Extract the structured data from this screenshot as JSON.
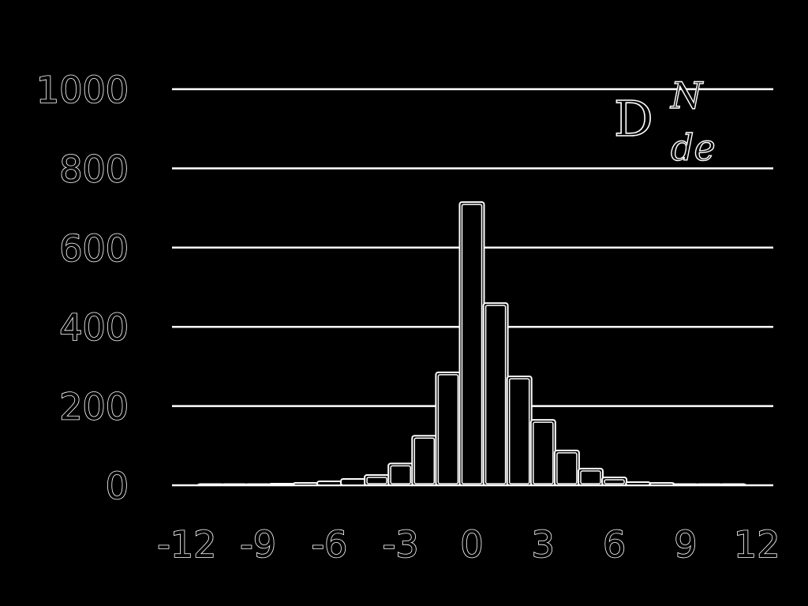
{
  "chart_data": {
    "type": "bar",
    "title": "",
    "xlabel": "",
    "ylabel": "",
    "xlim": [
      -12,
      12
    ],
    "ylim": [
      0,
      1000
    ],
    "x_ticks": [
      "-12",
      "-9",
      "-6",
      "-3",
      "0",
      "3",
      "6",
      "9",
      "12"
    ],
    "y_ticks": [
      "0",
      "200",
      "400",
      "600",
      "800",
      "1000"
    ],
    "grid": true,
    "legend_placement": "top-right",
    "series": [
      {
        "legend_main": "D",
        "legend_sup": "N",
        "legend_sub": "de",
        "x": [
          -11,
          -10,
          -9,
          -8,
          -7,
          -6,
          -5,
          -4,
          -3,
          -2,
          -1,
          0,
          1,
          2,
          3,
          4,
          5,
          6,
          7,
          8,
          9,
          10,
          11
        ],
        "values": [
          0,
          0,
          2,
          4,
          6,
          10,
          16,
          26,
          55,
          125,
          285,
          715,
          460,
          275,
          165,
          88,
          42,
          20,
          8,
          6,
          3,
          1,
          0
        ]
      }
    ],
    "colors": {
      "background": "#000000",
      "line": "#ffffff"
    }
  }
}
